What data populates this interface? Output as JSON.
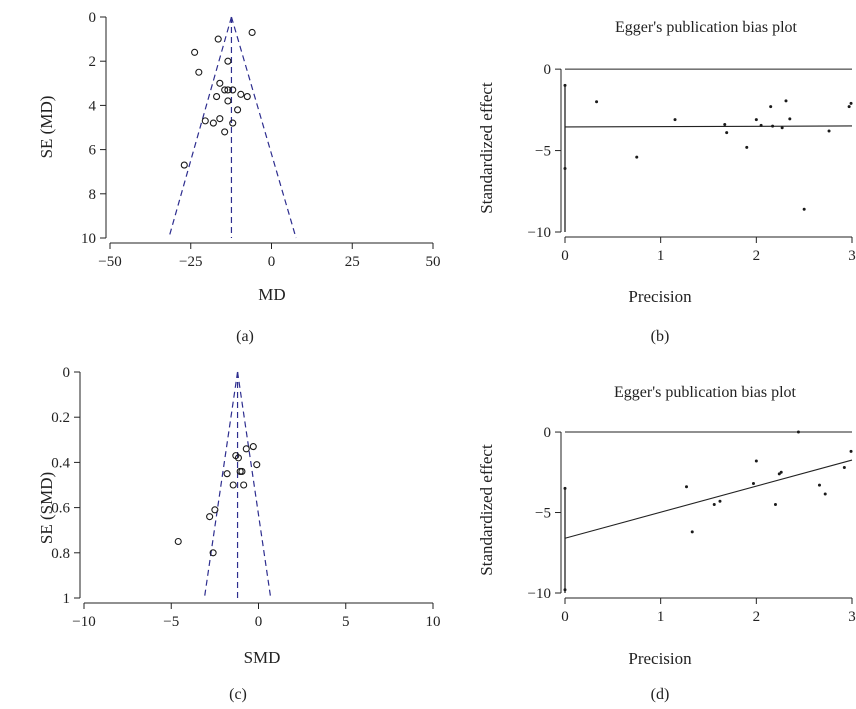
{
  "colors": {
    "axis": "#222222",
    "funnel": "#2e2e8f",
    "points": "#1a1a1a"
  },
  "chart_data": [
    {
      "panel": "(a)",
      "type": "scatter",
      "title": "",
      "xlabel": "MD",
      "ylabel": "SE (MD)",
      "xlim": [
        -50,
        50
      ],
      "ylim": [
        0,
        10
      ],
      "y_reversed": true,
      "xticks": [
        -50,
        -25,
        0,
        25,
        50
      ],
      "yticks": [
        0,
        2,
        4,
        6,
        8,
        10
      ],
      "xtick_labels": [
        "−50",
        "−25",
        "0",
        "25",
        "50"
      ],
      "ytick_labels": [
        "0",
        "2",
        "4",
        "6",
        "8",
        "10"
      ],
      "pooled_estimate": -12.4,
      "funnel_base": [
        -31.8,
        7.6
      ],
      "marker": "open-circle",
      "points": [
        {
          "x": -6.0,
          "y": 0.7
        },
        {
          "x": -16.5,
          "y": 1.0
        },
        {
          "x": -23.8,
          "y": 1.6
        },
        {
          "x": -13.5,
          "y": 2.0
        },
        {
          "x": -22.5,
          "y": 2.5
        },
        {
          "x": -16.0,
          "y": 3.0
        },
        {
          "x": -14.5,
          "y": 3.3
        },
        {
          "x": -13.5,
          "y": 3.3
        },
        {
          "x": -12.0,
          "y": 3.3
        },
        {
          "x": -17.0,
          "y": 3.6
        },
        {
          "x": -9.5,
          "y": 3.5
        },
        {
          "x": -7.5,
          "y": 3.6
        },
        {
          "x": -13.5,
          "y": 3.8
        },
        {
          "x": -10.5,
          "y": 4.2
        },
        {
          "x": -16.0,
          "y": 4.6
        },
        {
          "x": -20.5,
          "y": 4.7
        },
        {
          "x": -18.0,
          "y": 4.8
        },
        {
          "x": -12.0,
          "y": 4.8
        },
        {
          "x": -14.5,
          "y": 5.2
        },
        {
          "x": -27.0,
          "y": 6.7
        }
      ],
      "grid": false
    },
    {
      "panel": "(b)",
      "type": "scatter",
      "title": "Egger's publication bias plot",
      "xlabel": "Precision",
      "ylabel": "Standardized effect",
      "xlim": [
        0,
        3
      ],
      "ylim": [
        -10,
        0.5
      ],
      "xticks": [
        0,
        1,
        2,
        3
      ],
      "yticks": [
        0,
        -5,
        -10
      ],
      "xtick_labels": [
        "0",
        "1",
        "2",
        "3"
      ],
      "ytick_labels": [
        "0",
        "−5",
        "−10"
      ],
      "zero_line": 0,
      "regression_line": {
        "intercept": -3.55,
        "slope": 0.02
      },
      "intercept_bar": {
        "x": 0,
        "y_from": -10,
        "y_to": -1.0
      },
      "marker": "dot",
      "points": [
        {
          "x": 0.0,
          "y": -1.0
        },
        {
          "x": 0.0,
          "y": -6.1
        },
        {
          "x": 0.33,
          "y": -2.0
        },
        {
          "x": 0.75,
          "y": -5.4
        },
        {
          "x": 1.15,
          "y": -3.1
        },
        {
          "x": 1.67,
          "y": -3.4
        },
        {
          "x": 1.69,
          "y": -3.9
        },
        {
          "x": 1.9,
          "y": -4.8
        },
        {
          "x": 2.0,
          "y": -3.1
        },
        {
          "x": 2.05,
          "y": -3.45
        },
        {
          "x": 2.15,
          "y": -2.3
        },
        {
          "x": 2.17,
          "y": -3.5
        },
        {
          "x": 2.27,
          "y": -3.6
        },
        {
          "x": 2.31,
          "y": -1.95
        },
        {
          "x": 2.35,
          "y": -3.05
        },
        {
          "x": 2.5,
          "y": -8.6
        },
        {
          "x": 2.76,
          "y": -3.8
        },
        {
          "x": 2.97,
          "y": -2.3
        },
        {
          "x": 2.99,
          "y": -2.1
        }
      ],
      "grid": false
    },
    {
      "panel": "(c)",
      "type": "scatter",
      "title": "",
      "xlabel": "SMD",
      "ylabel": "SE (SMD)",
      "xlim": [
        -10,
        10
      ],
      "ylim": [
        0,
        1
      ],
      "y_reversed": true,
      "xticks": [
        -10,
        -5,
        0,
        5,
        10
      ],
      "yticks": [
        0,
        0.2,
        0.4,
        0.6,
        0.8,
        1
      ],
      "xtick_labels": [
        "−10",
        "−5",
        "0",
        "5",
        "10"
      ],
      "ytick_labels": [
        "0",
        "0.2",
        "0.4",
        "0.6",
        "0.8",
        "1"
      ],
      "pooled_estimate": -1.2,
      "funnel_base": [
        -3.1,
        0.7
      ],
      "marker": "open-circle",
      "points": [
        {
          "x": -0.3,
          "y": 0.33
        },
        {
          "x": -0.7,
          "y": 0.34
        },
        {
          "x": -1.3,
          "y": 0.37
        },
        {
          "x": -1.15,
          "y": 0.38
        },
        {
          "x": -0.1,
          "y": 0.41
        },
        {
          "x": -1.05,
          "y": 0.44
        },
        {
          "x": -0.95,
          "y": 0.44
        },
        {
          "x": -1.8,
          "y": 0.45
        },
        {
          "x": -1.45,
          "y": 0.5
        },
        {
          "x": -0.85,
          "y": 0.5
        },
        {
          "x": -2.5,
          "y": 0.61
        },
        {
          "x": -2.8,
          "y": 0.64
        },
        {
          "x": -4.6,
          "y": 0.75
        },
        {
          "x": -2.6,
          "y": 0.8
        }
      ],
      "grid": false
    },
    {
      "panel": "(d)",
      "type": "scatter",
      "title": "Egger's publication bias plot",
      "xlabel": "Precision",
      "ylabel": "Standardized effect",
      "xlim": [
        0,
        3
      ],
      "ylim": [
        -10,
        0.5
      ],
      "xticks": [
        0,
        1,
        2,
        3
      ],
      "yticks": [
        0,
        -5,
        -10
      ],
      "xtick_labels": [
        "0",
        "1",
        "2",
        "3"
      ],
      "ytick_labels": [
        "0",
        "−5",
        "−10"
      ],
      "zero_line": 0,
      "regression_line": {
        "intercept": -6.6,
        "slope": 1.62
      },
      "intercept_bar": {
        "x": 0,
        "y_from": -10,
        "y_to": -3.5
      },
      "marker": "dot",
      "points": [
        {
          "x": 0.0,
          "y": -3.5
        },
        {
          "x": 0.0,
          "y": -9.8
        },
        {
          "x": 1.27,
          "y": -3.4
        },
        {
          "x": 1.33,
          "y": -6.2
        },
        {
          "x": 1.56,
          "y": -4.5
        },
        {
          "x": 1.62,
          "y": -4.3
        },
        {
          "x": 1.97,
          "y": -3.2
        },
        {
          "x": 2.0,
          "y": -1.8
        },
        {
          "x": 2.2,
          "y": -4.5
        },
        {
          "x": 2.24,
          "y": -2.6
        },
        {
          "x": 2.26,
          "y": -2.5
        },
        {
          "x": 2.44,
          "y": 0.0
        },
        {
          "x": 2.66,
          "y": -3.3
        },
        {
          "x": 2.72,
          "y": -3.85
        },
        {
          "x": 2.92,
          "y": -2.2
        },
        {
          "x": 2.99,
          "y": -1.2
        }
      ],
      "grid": false
    }
  ]
}
